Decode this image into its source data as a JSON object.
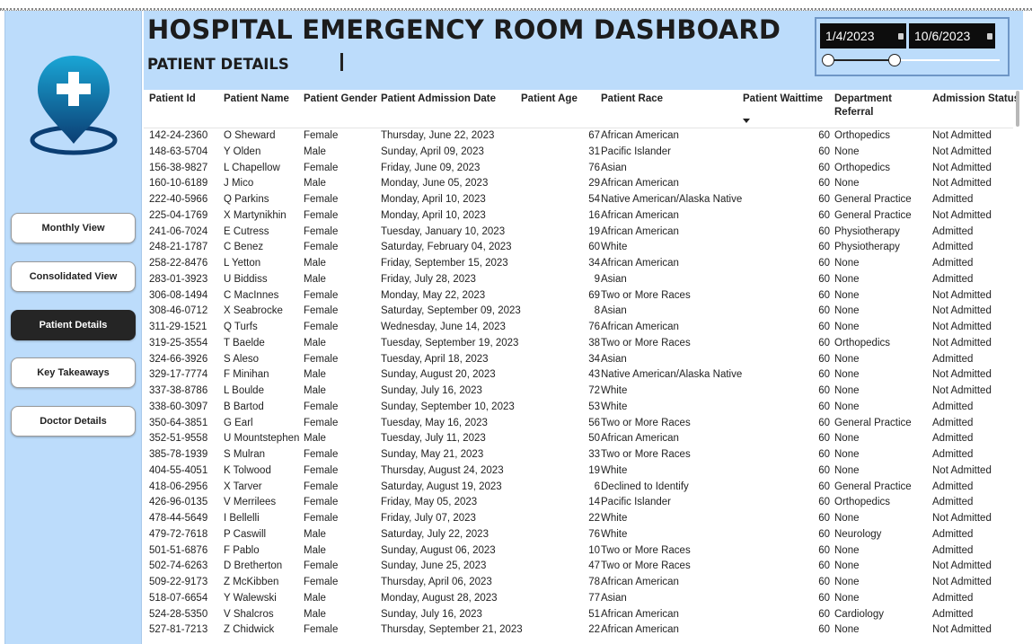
{
  "header": {
    "title": "HOSPITAL EMERGENCY ROOM DASHBOARD",
    "subtitle": "PATIENT DETAILS"
  },
  "date_filter": {
    "start": "1/4/2023",
    "end": "10/6/2023"
  },
  "nav": {
    "monthly": "Monthly View",
    "consolidated": "Consolidated View",
    "patient": "Patient Details",
    "takeaways": "Key Takeaways",
    "doctor": "Doctor Details"
  },
  "columns": {
    "id": "Patient Id",
    "name": "Patient Name",
    "gender": "Patient Gender",
    "date": "Patient Admission Date",
    "age": "Patient Age",
    "race": "Patient Race",
    "wait": "Patient Waittime",
    "dept_line1": "Department",
    "dept_line2": "Referral",
    "status": "Admission Status"
  },
  "colors": {
    "panel": "#bcdcfb",
    "active_button": "#252525",
    "logo_gradient_top": "#1aa6d6",
    "logo_gradient_bottom": "#0b3e73"
  },
  "rows": [
    [
      "142-24-2360",
      "O Sheward",
      "Female",
      "Thursday, June 22, 2023",
      "67",
      "African American",
      "60",
      "Orthopedics",
      "Not Admitted"
    ],
    [
      "148-63-5704",
      "Y Olden",
      "Male",
      "Sunday, April 09, 2023",
      "31",
      "Pacific Islander",
      "60",
      "None",
      "Not Admitted"
    ],
    [
      "156-38-9827",
      "L Chapellow",
      "Female",
      "Friday, June 09, 2023",
      "76",
      "Asian",
      "60",
      "Orthopedics",
      "Not Admitted"
    ],
    [
      "160-10-6189",
      "J Mico",
      "Male",
      "Monday, June 05, 2023",
      "29",
      "African American",
      "60",
      "None",
      "Not Admitted"
    ],
    [
      "222-40-5966",
      "Q Parkins",
      "Female",
      "Monday, April 10, 2023",
      "54",
      "Native American/Alaska Native",
      "60",
      "General Practice",
      "Admitted"
    ],
    [
      "225-04-1769",
      "X Martynikhin",
      "Female",
      "Monday, April 10, 2023",
      "16",
      "African American",
      "60",
      "General Practice",
      "Not Admitted"
    ],
    [
      "241-06-7024",
      "E Cutress",
      "Female",
      "Tuesday, January 10, 2023",
      "19",
      "African American",
      "60",
      "Physiotherapy",
      "Admitted"
    ],
    [
      "248-21-1787",
      "C Benez",
      "Female",
      "Saturday, February 04, 2023",
      "60",
      "White",
      "60",
      "Physiotherapy",
      "Admitted"
    ],
    [
      "258-22-8476",
      "L Yetton",
      "Male",
      "Friday, September 15, 2023",
      "34",
      "African American",
      "60",
      "None",
      "Admitted"
    ],
    [
      "283-01-3923",
      "U Biddiss",
      "Male",
      "Friday, July 28, 2023",
      "9",
      "Asian",
      "60",
      "None",
      "Admitted"
    ],
    [
      "306-08-1494",
      "C MacInnes",
      "Female",
      "Monday, May 22, 2023",
      "69",
      "Two or More Races",
      "60",
      "None",
      "Not Admitted"
    ],
    [
      "308-46-0712",
      "X Seabrocke",
      "Female",
      "Saturday, September 09, 2023",
      "8",
      "Asian",
      "60",
      "None",
      "Not Admitted"
    ],
    [
      "311-29-1521",
      "Q Turfs",
      "Female",
      "Wednesday, June 14, 2023",
      "76",
      "African American",
      "60",
      "None",
      "Not Admitted"
    ],
    [
      "319-25-3554",
      "T Baelde",
      "Male",
      "Tuesday, September 19, 2023",
      "38",
      "Two or More Races",
      "60",
      "Orthopedics",
      "Not Admitted"
    ],
    [
      "324-66-3926",
      "S Aleso",
      "Female",
      "Tuesday, April 18, 2023",
      "34",
      "Asian",
      "60",
      "None",
      "Admitted"
    ],
    [
      "329-17-7774",
      "F Minihan",
      "Male",
      "Sunday, August 20, 2023",
      "43",
      "Native American/Alaska Native",
      "60",
      "None",
      "Not Admitted"
    ],
    [
      "337-38-8786",
      "L Boulde",
      "Male",
      "Sunday, July 16, 2023",
      "72",
      "White",
      "60",
      "None",
      "Not Admitted"
    ],
    [
      "338-60-3097",
      "B Bartod",
      "Female",
      "Sunday, September 10, 2023",
      "53",
      "White",
      "60",
      "None",
      "Admitted"
    ],
    [
      "350-64-3851",
      "G Earl",
      "Female",
      "Tuesday, May 16, 2023",
      "56",
      "Two or More Races",
      "60",
      "General Practice",
      "Admitted"
    ],
    [
      "352-51-9558",
      "U Mountstephen",
      "Male",
      "Tuesday, July 11, 2023",
      "50",
      "African American",
      "60",
      "None",
      "Admitted"
    ],
    [
      "385-78-1939",
      "S Mulran",
      "Female",
      "Sunday, May 21, 2023",
      "33",
      "Two or More Races",
      "60",
      "None",
      "Admitted"
    ],
    [
      "404-55-4051",
      "K Tolwood",
      "Female",
      "Thursday, August 24, 2023",
      "19",
      "White",
      "60",
      "None",
      "Not Admitted"
    ],
    [
      "418-06-2956",
      "X Tarver",
      "Female",
      "Saturday, August 19, 2023",
      "6",
      "Declined to Identify",
      "60",
      "General Practice",
      "Admitted"
    ],
    [
      "426-96-0135",
      "V Merrilees",
      "Female",
      "Friday, May 05, 2023",
      "14",
      "Pacific Islander",
      "60",
      "Orthopedics",
      "Admitted"
    ],
    [
      "478-44-5649",
      "I Bellelli",
      "Female",
      "Friday, July 07, 2023",
      "22",
      "White",
      "60",
      "None",
      "Not Admitted"
    ],
    [
      "479-72-7618",
      "P Caswill",
      "Male",
      "Saturday, July 22, 2023",
      "76",
      "White",
      "60",
      "Neurology",
      "Admitted"
    ],
    [
      "501-51-6876",
      "F Pablo",
      "Male",
      "Sunday, August 06, 2023",
      "10",
      "Two or More Races",
      "60",
      "None",
      "Admitted"
    ],
    [
      "502-74-6263",
      "D Bretherton",
      "Female",
      "Sunday, June 25, 2023",
      "47",
      "Two or More Races",
      "60",
      "None",
      "Not Admitted"
    ],
    [
      "509-22-9173",
      "Z McKibben",
      "Female",
      "Thursday, April 06, 2023",
      "78",
      "African American",
      "60",
      "None",
      "Not Admitted"
    ],
    [
      "518-07-6654",
      "Y Walewski",
      "Male",
      "Monday, August 28, 2023",
      "77",
      "Asian",
      "60",
      "None",
      "Admitted"
    ],
    [
      "524-28-5350",
      "V Shalcros",
      "Male",
      "Sunday, July 16, 2023",
      "51",
      "African American",
      "60",
      "Cardiology",
      "Admitted"
    ],
    [
      "527-81-7213",
      "Z Chidwick",
      "Female",
      "Thursday, September 21, 2023",
      "22",
      "African American",
      "60",
      "None",
      "Not Admitted"
    ]
  ]
}
